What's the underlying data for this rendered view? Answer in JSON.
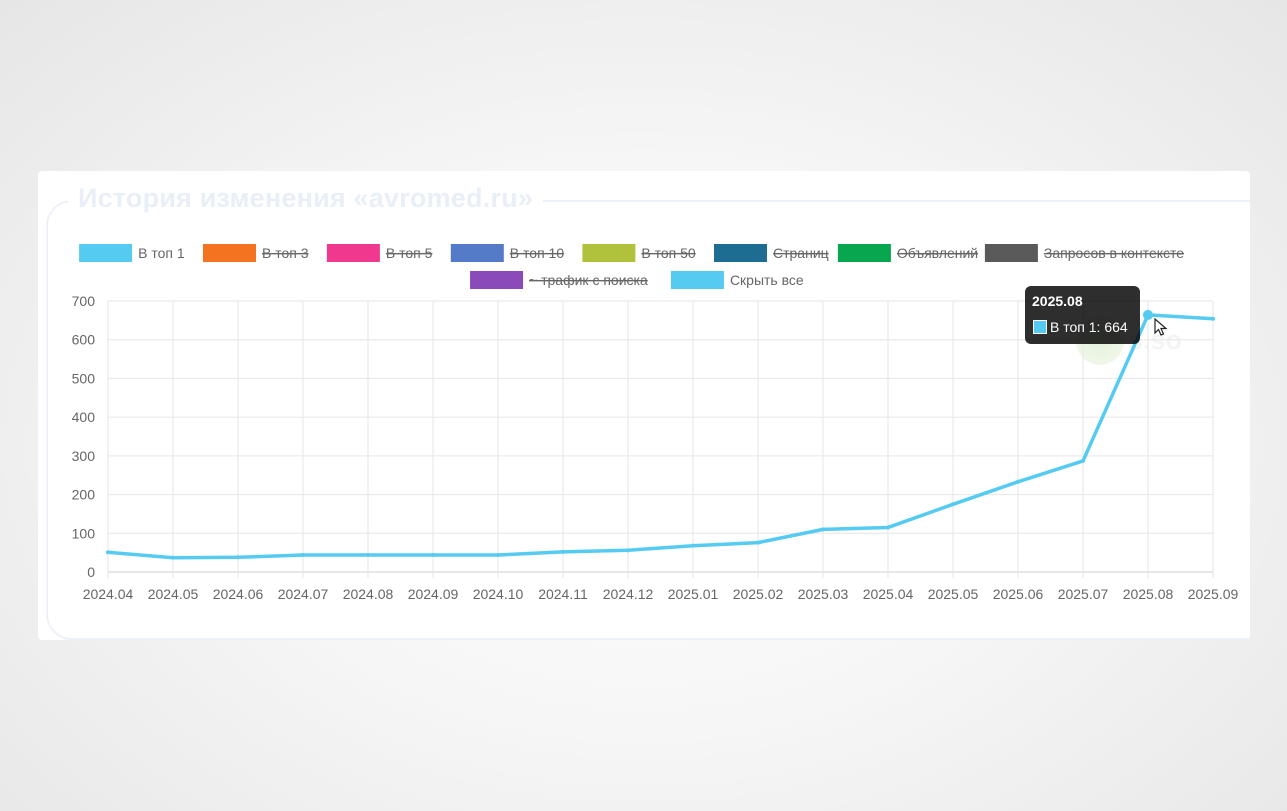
{
  "page": {
    "title": "История изменения «avromed.ru»",
    "watermark": "s.so"
  },
  "chart_data": {
    "type": "line",
    "x": [
      "2024.04",
      "2024.05",
      "2024.06",
      "2024.07",
      "2024.08",
      "2024.09",
      "2024.10",
      "2024.11",
      "2024.12",
      "2025.01",
      "2025.02",
      "2025.03",
      "2025.04",
      "2025.05",
      "2025.06",
      "2025.07",
      "2025.08",
      "2025.09"
    ],
    "series": [
      {
        "name": "В топ 1",
        "color": "#56cbf2",
        "hidden": false,
        "values": [
          51,
          37,
          38,
          44,
          44,
          44,
          44,
          52,
          56,
          68,
          76,
          110,
          115,
          175,
          233,
          287,
          664,
          654
        ]
      },
      {
        "name": "В топ 3",
        "color": "#f47321",
        "hidden": true
      },
      {
        "name": "В топ 5",
        "color": "#f1388f",
        "hidden": true
      },
      {
        "name": "В топ 10",
        "color": "#537bc7",
        "hidden": true
      },
      {
        "name": "В топ 50",
        "color": "#b0c13b",
        "hidden": true
      },
      {
        "name": "Страниц",
        "color": "#1d6d93",
        "hidden": true
      },
      {
        "name": "Объявлений",
        "color": "#09a650",
        "hidden": true
      },
      {
        "name": "Запросов в контексте",
        "color": "#5a5a5a",
        "hidden": true
      },
      {
        "name": "~ трафик с поиска",
        "color": "#8a4ab9",
        "hidden": true
      }
    ],
    "legend_extra": {
      "name": "Скрыть все",
      "color": "#56cbf2"
    },
    "yticks": [
      0,
      100,
      200,
      300,
      400,
      500,
      600,
      700
    ],
    "ylim": [
      0,
      700
    ],
    "grid": true,
    "legend_position": "top",
    "tooltip": {
      "title": "2025.08",
      "label": "В топ 1",
      "value": "664",
      "index": 16
    }
  }
}
